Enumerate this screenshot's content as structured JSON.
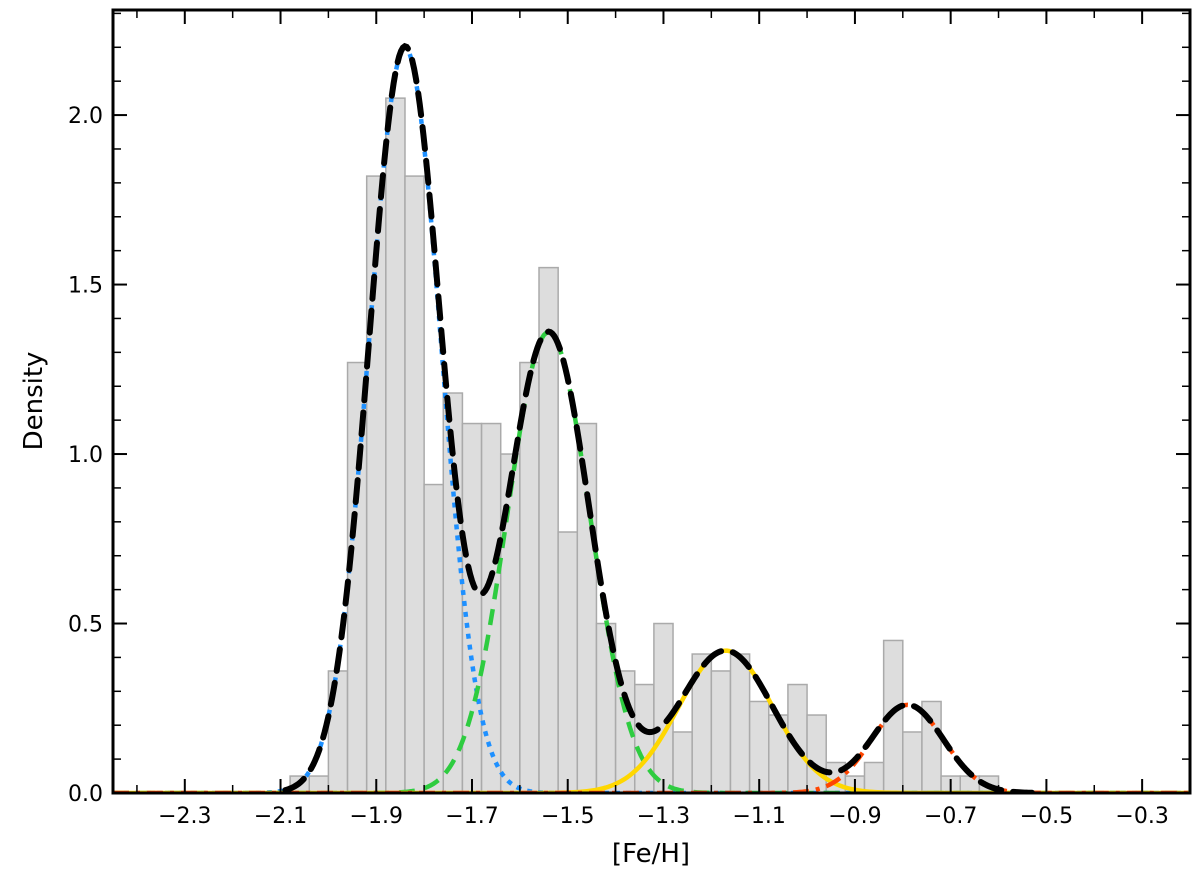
{
  "chart_data": {
    "type": "histogram",
    "title": "",
    "xlabel": "[Fe/H]",
    "ylabel": "Density",
    "xlim": [
      -2.45,
      -0.2
    ],
    "ylim": [
      0,
      2.31
    ],
    "grid": false,
    "legend": "none",
    "x_ticks": [
      -2.3,
      -2.1,
      -1.9,
      -1.7,
      -1.5,
      -1.3,
      -1.1,
      -0.9,
      -0.7,
      -0.5,
      -0.3
    ],
    "x_tick_labels": [
      "−2.3",
      "−2.1",
      "−1.9",
      "−1.7",
      "−1.5",
      "−1.3",
      "−1.1",
      "−0.9",
      "−0.7",
      "−0.5",
      "−0.3"
    ],
    "y_ticks": [
      0.0,
      0.5,
      1.0,
      1.5,
      2.0
    ],
    "y_tick_labels": [
      "0.0",
      "0.5",
      "1.0",
      "1.5",
      "2.0"
    ],
    "histogram": {
      "bin_width": 0.04,
      "color": "#dddddd",
      "edge_color": "#aaaaaa",
      "bin_left_edges": [
        -2.08,
        -2.04,
        -2.0,
        -1.96,
        -1.92,
        -1.88,
        -1.84,
        -1.8,
        -1.76,
        -1.72,
        -1.68,
        -1.64,
        -1.6,
        -1.56,
        -1.52,
        -1.48,
        -1.44,
        -1.4,
        -1.36,
        -1.32,
        -1.28,
        -1.24,
        -1.2,
        -1.16,
        -1.12,
        -1.08,
        -1.04,
        -1.0,
        -0.96,
        -0.92,
        -0.88,
        -0.84,
        -0.8,
        -0.76,
        -0.72,
        -0.68,
        -0.64,
        -0.6,
        -0.56
      ],
      "values": [
        0.05,
        0.05,
        0.36,
        1.27,
        1.82,
        2.05,
        1.82,
        0.91,
        1.18,
        1.09,
        1.09,
        1.0,
        1.27,
        1.55,
        0.77,
        1.09,
        0.5,
        0.36,
        0.32,
        0.5,
        0.18,
        0.41,
        0.36,
        0.41,
        0.27,
        0.23,
        0.32,
        0.23,
        0.09,
        0.05,
        0.09,
        0.45,
        0.18,
        0.27,
        0.05,
        0.05,
        0.05,
        0.0,
        0.0
      ]
    },
    "components": [
      {
        "mean": -1.84,
        "sigma": 0.075,
        "amplitude": 2.2,
        "color": "#1e90ff",
        "style": "dotted"
      },
      {
        "mean": -1.54,
        "sigma": 0.086,
        "amplitude": 1.36,
        "color": "#2ecc40",
        "style": "dashed"
      },
      {
        "mean": -1.17,
        "sigma": 0.098,
        "amplitude": 0.42,
        "color": "#ffd700",
        "style": "solid"
      },
      {
        "mean": -0.79,
        "sigma": 0.075,
        "amplitude": 0.26,
        "color": "#ff4500",
        "style": "dashdot"
      }
    ],
    "total_fit": {
      "color": "#000000",
      "style": "dashed",
      "x_range": [
        -2.09,
        -0.53
      ]
    }
  }
}
